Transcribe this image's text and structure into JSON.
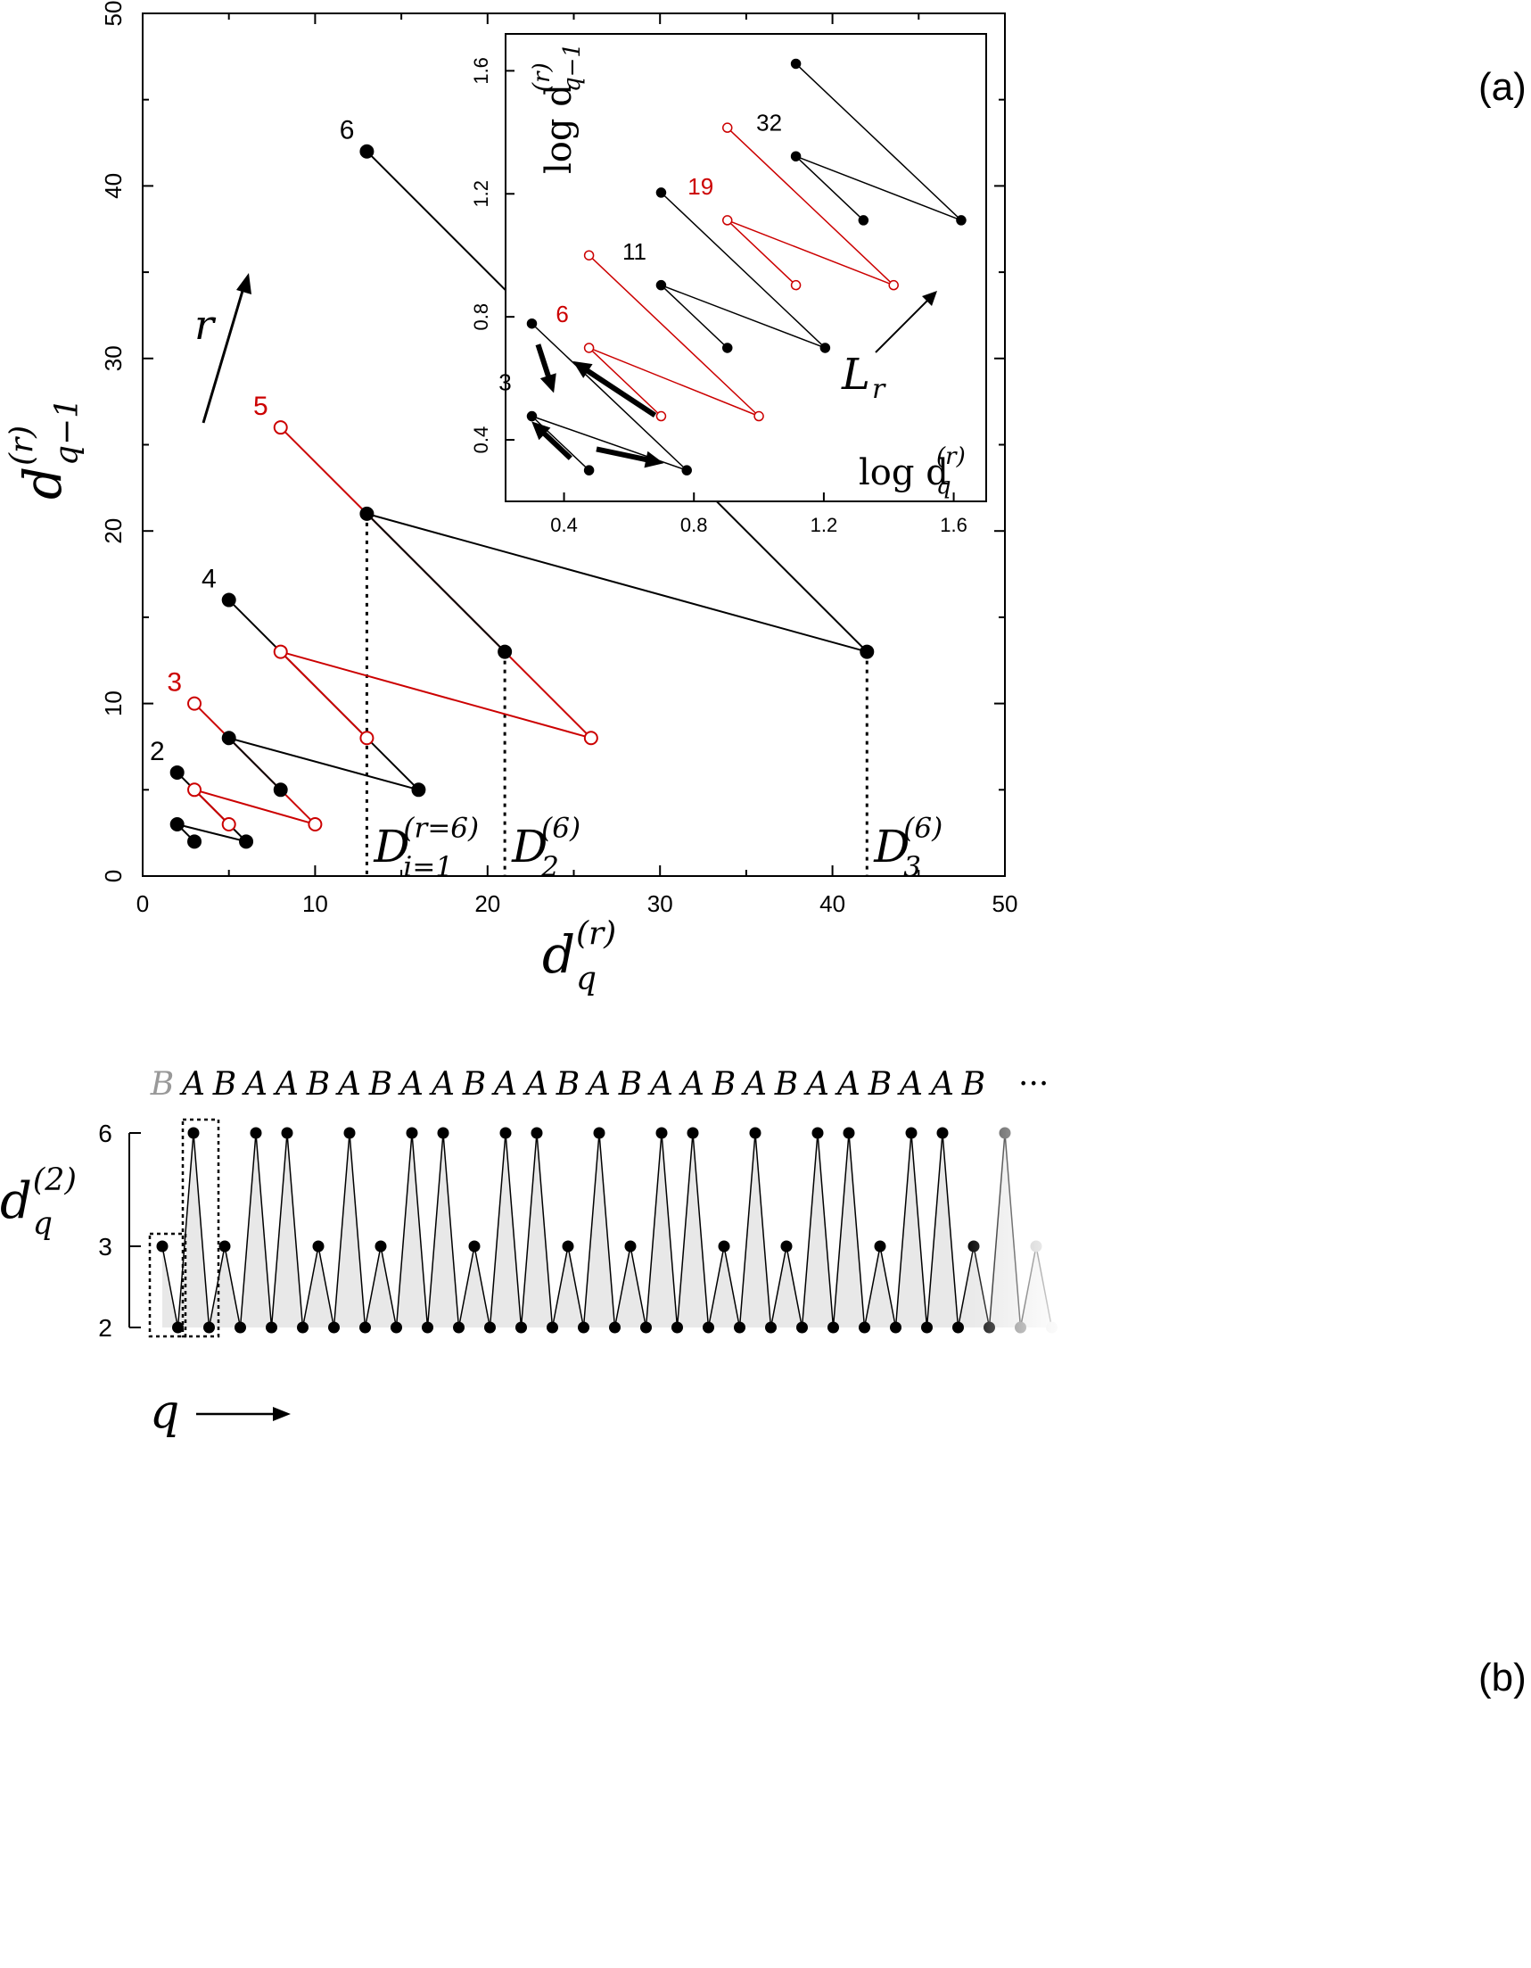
{
  "chart_data": [
    {
      "panel": "(a)",
      "type": "line",
      "xlabel_main": "d",
      "xlabel_sub": "q",
      "xlabel_sup": "(r)",
      "ylabel_main": "d",
      "ylabel_sub": "q−1",
      "ylabel_sup": "(r)",
      "xlim": [
        0,
        50
      ],
      "ylim": [
        0,
        50
      ],
      "xticks": [
        0,
        10,
        20,
        30,
        40,
        50
      ],
      "yticks": [
        0,
        10,
        20,
        30,
        40,
        50
      ],
      "r_arrow_label": "r",
      "series": [
        {
          "name": "2",
          "color": "#000000",
          "hollow": false,
          "points": [
            [
              3,
              2
            ],
            [
              2,
              3
            ],
            [
              6,
              2
            ],
            [
              2,
              6
            ]
          ]
        },
        {
          "name": "3",
          "color": "#cc0000",
          "hollow": true,
          "points": [
            [
              5,
              3
            ],
            [
              3,
              5
            ],
            [
              10,
              3
            ],
            [
              3,
              10
            ]
          ]
        },
        {
          "name": "4",
          "color": "#000000",
          "hollow": false,
          "points": [
            [
              8,
              5
            ],
            [
              5,
              8
            ],
            [
              16,
              5
            ],
            [
              5,
              16
            ]
          ]
        },
        {
          "name": "5",
          "color": "#cc0000",
          "hollow": true,
          "points": [
            [
              13,
              8
            ],
            [
              8,
              13
            ],
            [
              26,
              8
            ],
            [
              8,
              26
            ]
          ]
        },
        {
          "name": "6",
          "color": "#000000",
          "hollow": false,
          "points": [
            [
              21,
              13
            ],
            [
              13,
              21
            ],
            [
              42,
              13
            ],
            [
              13,
              42
            ]
          ]
        }
      ],
      "annotations": [
        {
          "x": 13,
          "main": "D",
          "sub": "i=1",
          "sup": "(r=6)"
        },
        {
          "x": 21,
          "main": "D",
          "sub": "2",
          "sup": "(6)"
        },
        {
          "x": 42,
          "main": "D",
          "sub": "3",
          "sup": "(6)"
        }
      ]
    },
    {
      "panel": "inset",
      "type": "line",
      "xlabel": "log d",
      "xlabel_sub": "q",
      "xlabel_sup": "(r)",
      "ylabel": "log d",
      "ylabel_sub": "q−1",
      "ylabel_sup": "(r)",
      "xlim": [
        0.22,
        1.7
      ],
      "ylim": [
        0.2,
        1.72
      ],
      "xticks": [
        0.4,
        0.8,
        1.2,
        1.6
      ],
      "yticks": [
        0.4,
        0.8,
        1.2,
        1.6
      ],
      "tick_labels": [
        "0.4",
        "0.8",
        "1.2",
        "1.6"
      ],
      "arrow_label": "L",
      "arrow_label_sub": "r",
      "series": [
        {
          "name": "3",
          "color": "#000000",
          "hollow": false,
          "points": [
            [
              0.477,
              0.301
            ],
            [
              0.301,
              0.477
            ],
            [
              0.778,
              0.301
            ],
            [
              0.301,
              0.778
            ]
          ]
        },
        {
          "name": "6",
          "color": "#cc0000",
          "hollow": true,
          "points": [
            [
              0.699,
              0.477
            ],
            [
              0.477,
              0.699
            ],
            [
              1.0,
              0.477
            ],
            [
              0.477,
              1.0
            ]
          ]
        },
        {
          "name": "11",
          "color": "#000000",
          "hollow": false,
          "points": [
            [
              0.903,
              0.699
            ],
            [
              0.699,
              0.903
            ],
            [
              1.204,
              0.699
            ],
            [
              0.699,
              1.204
            ]
          ]
        },
        {
          "name": "19",
          "color": "#cc0000",
          "hollow": true,
          "points": [
            [
              1.114,
              0.903
            ],
            [
              0.903,
              1.114
            ],
            [
              1.415,
              0.903
            ],
            [
              0.903,
              1.415
            ]
          ]
        },
        {
          "name": "32",
          "color": "#000000",
          "hollow": false,
          "points": [
            [
              1.322,
              1.114
            ],
            [
              1.114,
              1.322
            ],
            [
              1.623,
              1.114
            ],
            [
              1.114,
              1.623
            ]
          ]
        }
      ]
    },
    {
      "panel": "(b)",
      "type": "line",
      "ylabel_main": "d",
      "ylabel_sub": "q",
      "ylabel_sup": "(2)",
      "xlabel": "q",
      "yticks": [
        2,
        3,
        6
      ],
      "sequence": [
        "B",
        "A",
        "B",
        "A",
        "A",
        "B",
        "A",
        "B",
        "A",
        "A",
        "B",
        "A",
        "A",
        "B",
        "A",
        "B",
        "A",
        "A",
        "B",
        "A",
        "B",
        "A",
        "A",
        "B",
        "A",
        "A",
        "B"
      ],
      "ellipsis": "···",
      "values": [
        3,
        2,
        6,
        2,
        3,
        2,
        6,
        2,
        6,
        2,
        3,
        2,
        6,
        2,
        3,
        2,
        6,
        2,
        6,
        2,
        3,
        2,
        6,
        2,
        6,
        2,
        3,
        2,
        6,
        2,
        3,
        2,
        6,
        2,
        6,
        2,
        3,
        2,
        6,
        2,
        3,
        2,
        6,
        2,
        6,
        2,
        3,
        2,
        6,
        2,
        6,
        2,
        3,
        2,
        6,
        2,
        3,
        2
      ]
    }
  ]
}
